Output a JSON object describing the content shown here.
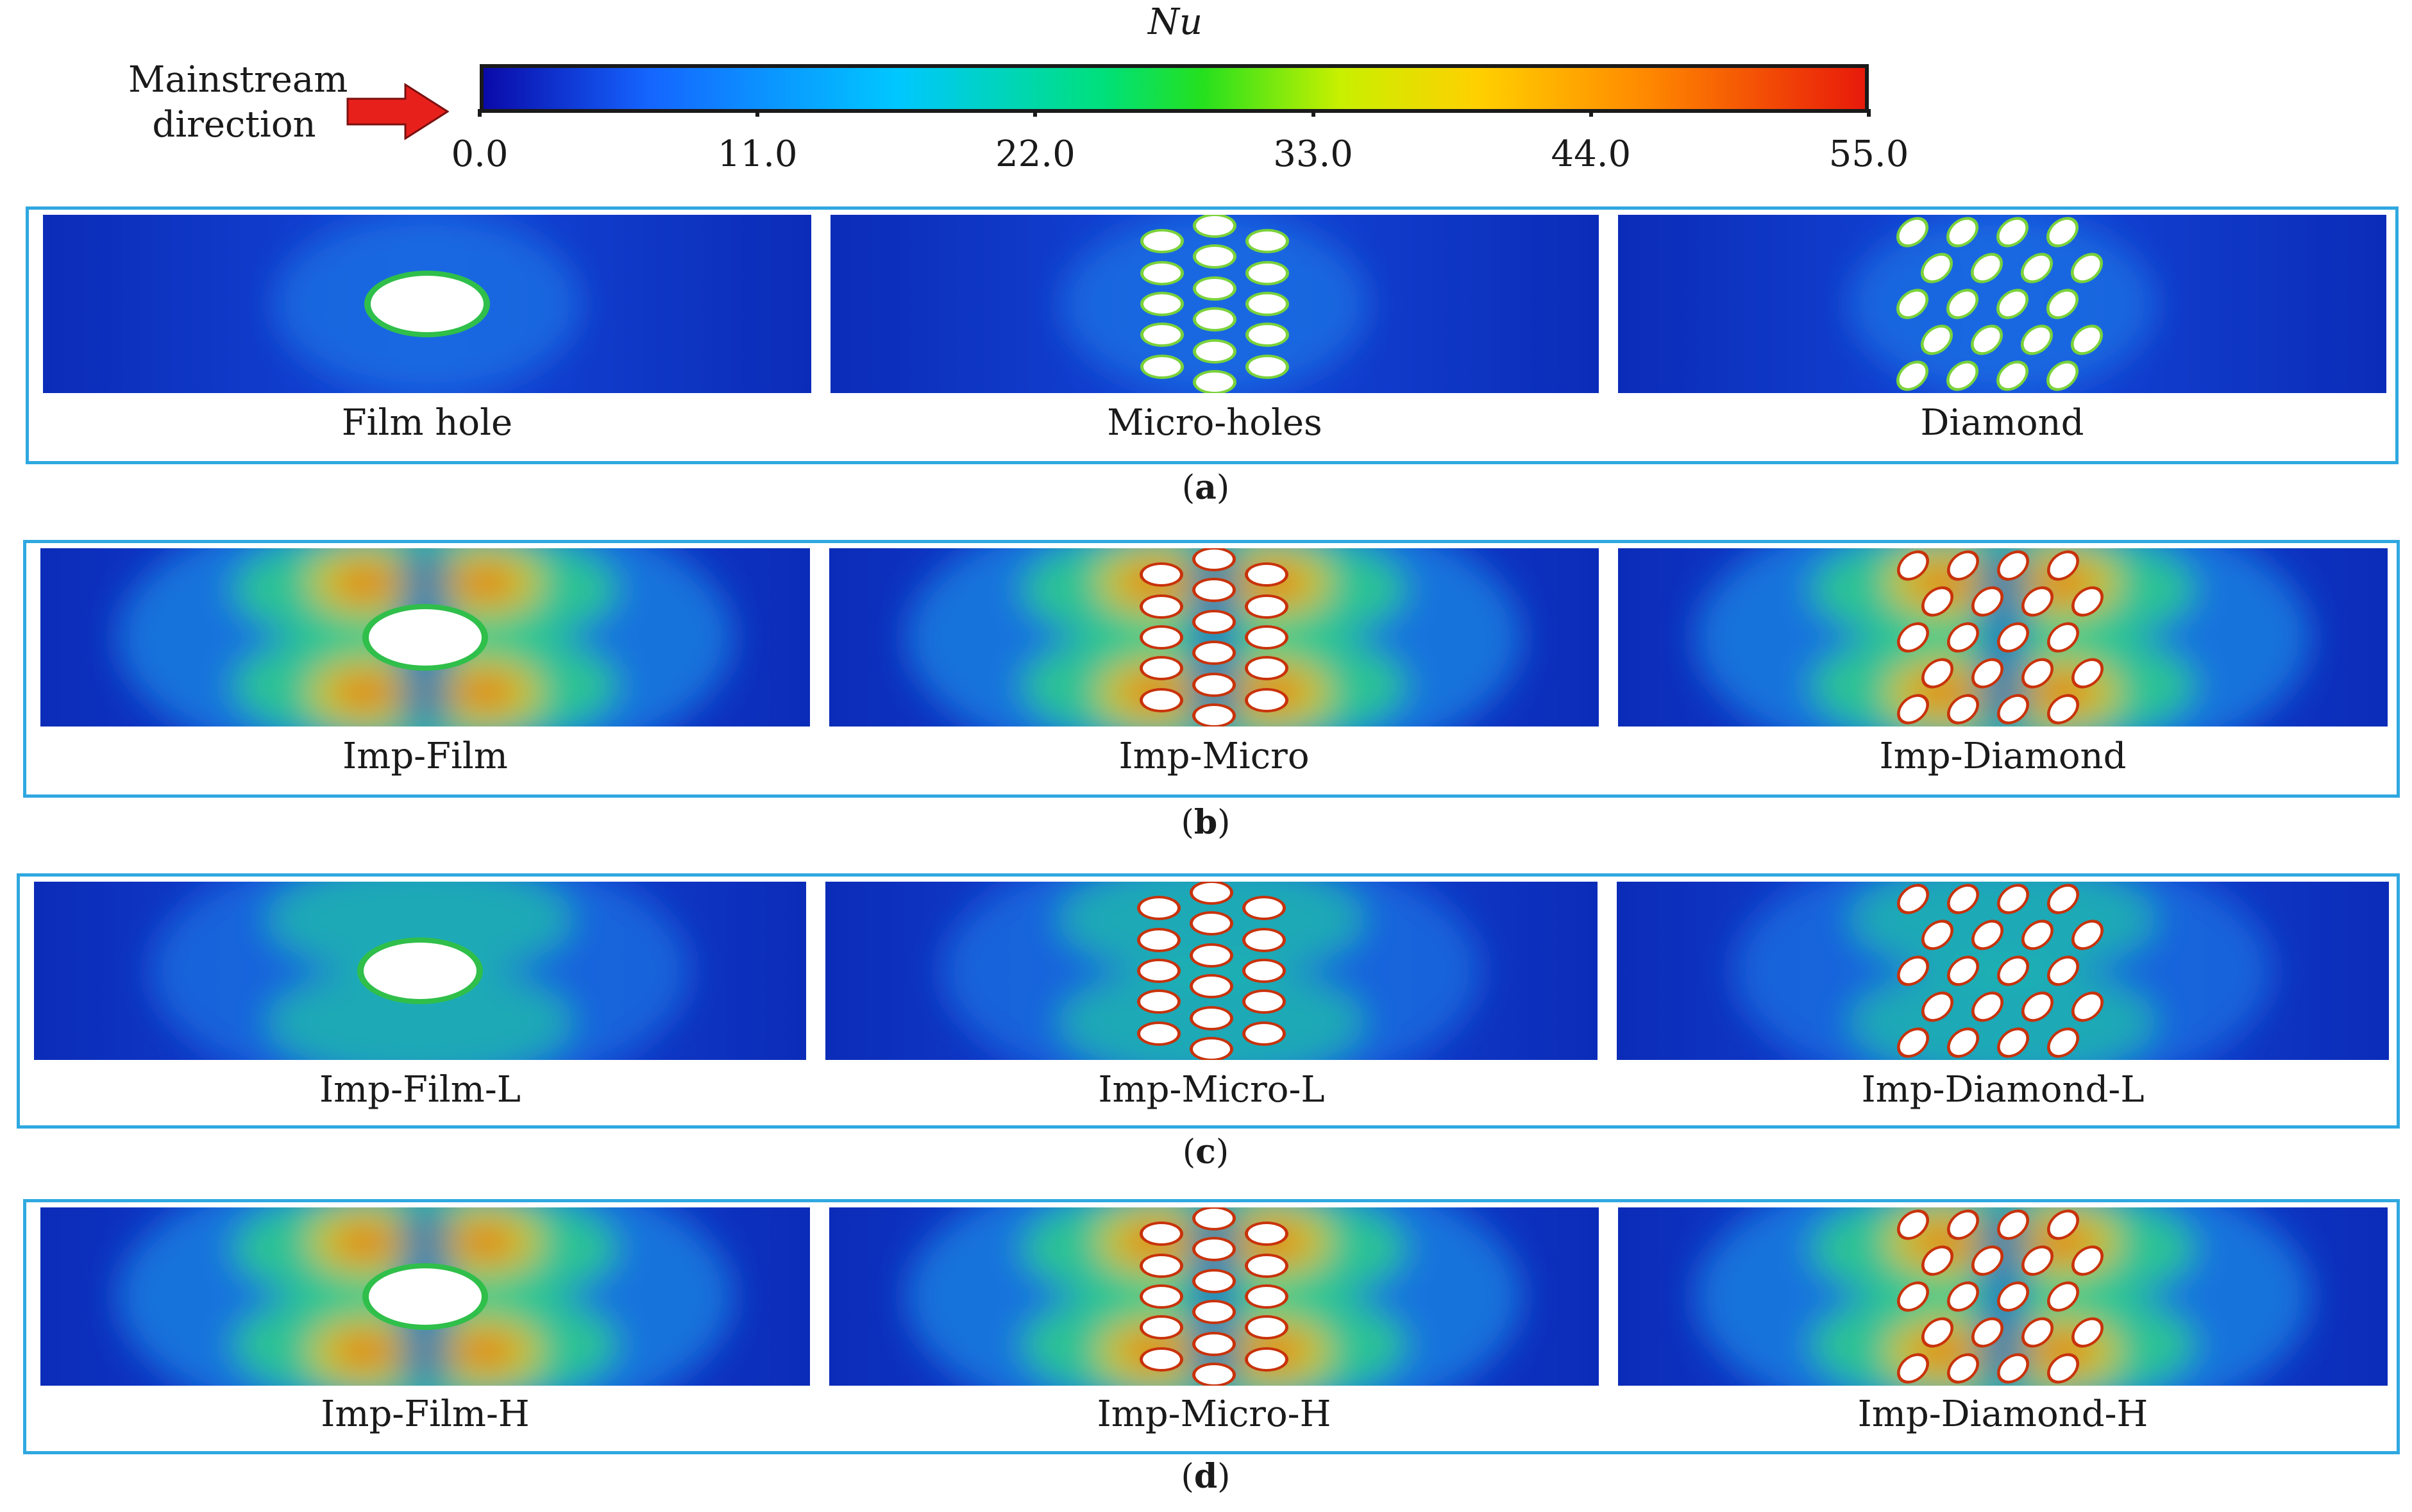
{
  "colorbar": {
    "title": "Nu",
    "ticks": [
      "0.0",
      "11.0",
      "22.0",
      "33.0",
      "44.0",
      "55.0"
    ],
    "range": [
      0,
      55
    ],
    "colormap": [
      "#0a0aa8",
      "#1565ff",
      "#00c8ff",
      "#00e07a",
      "#24e01e",
      "#c8f000",
      "#ffd000",
      "#ff8a00",
      "#e81a0a"
    ]
  },
  "flow": {
    "label_line1": "Mainstream",
    "label_line2": "direction",
    "arrow_color": "#e8201c"
  },
  "panels": [
    {
      "letter": "a",
      "intensity": "low",
      "cases": [
        {
          "label": "Film hole",
          "geometry": "film"
        },
        {
          "label": "Micro-holes",
          "geometry": "micro"
        },
        {
          "label": "Diamond",
          "geometry": "diamond"
        }
      ]
    },
    {
      "letter": "b",
      "intensity": "high",
      "cases": [
        {
          "label": "Imp-Film",
          "geometry": "film"
        },
        {
          "label": "Imp-Micro",
          "geometry": "micro"
        },
        {
          "label": "Imp-Diamond",
          "geometry": "diamond"
        }
      ]
    },
    {
      "letter": "c",
      "intensity": "medium",
      "cases": [
        {
          "label": "Imp-Film-L",
          "geometry": "film"
        },
        {
          "label": "Imp-Micro-L",
          "geometry": "micro"
        },
        {
          "label": "Imp-Diamond-L",
          "geometry": "diamond"
        }
      ]
    },
    {
      "letter": "d",
      "intensity": "high",
      "cases": [
        {
          "label": "Imp-Film-H",
          "geometry": "film"
        },
        {
          "label": "Imp-Micro-H",
          "geometry": "micro"
        },
        {
          "label": "Imp-Diamond-H",
          "geometry": "diamond"
        }
      ]
    }
  ]
}
